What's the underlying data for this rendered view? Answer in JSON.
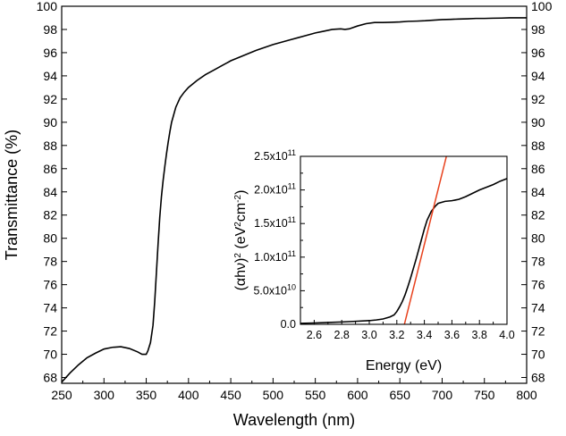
{
  "chart_data": [
    {
      "type": "line",
      "xlabel": "Wavelength (nm)",
      "ylabel": "Transmittance (%)",
      "xlim": [
        250,
        800
      ],
      "ylim": [
        67.5,
        100
      ],
      "x_ticks": [
        "250",
        "300",
        "350",
        "400",
        "450",
        "500",
        "550",
        "600",
        "650",
        "700",
        "750",
        "800"
      ],
      "y_ticks": [
        "68",
        "70",
        "72",
        "74",
        "76",
        "78",
        "80",
        "82",
        "84",
        "86",
        "88",
        "90",
        "92",
        "94",
        "96",
        "98",
        "100"
      ],
      "y_ticks_right": true,
      "grid": false,
      "line_color": "#000000",
      "series": [
        {
          "x": [
            250,
            260,
            270,
            280,
            290,
            300,
            310,
            320,
            330,
            340,
            345,
            350,
            352,
            355,
            358,
            360,
            362,
            364,
            366,
            368,
            370,
            372,
            374,
            376,
            378,
            380,
            385,
            390,
            395,
            400,
            410,
            420,
            430,
            440,
            450,
            460,
            470,
            480,
            490,
            500,
            510,
            520,
            530,
            540,
            550,
            560,
            570,
            580,
            585,
            590,
            600,
            610,
            620,
            630,
            640,
            650,
            660,
            670,
            680,
            690,
            700,
            710,
            720,
            730,
            740,
            750,
            760,
            770,
            780,
            790,
            800
          ],
          "y": [
            67.6,
            68.4,
            69.1,
            69.7,
            70.1,
            70.45,
            70.6,
            70.65,
            70.5,
            70.2,
            70.0,
            70.0,
            70.3,
            71.0,
            72.5,
            74.5,
            77.0,
            79.5,
            81.8,
            83.6,
            85.0,
            86.2,
            87.3,
            88.3,
            89.2,
            90.0,
            91.3,
            92.1,
            92.6,
            93.0,
            93.6,
            94.1,
            94.5,
            94.9,
            95.3,
            95.6,
            95.9,
            96.2,
            96.45,
            96.7,
            96.9,
            97.1,
            97.3,
            97.5,
            97.7,
            97.85,
            98.0,
            98.05,
            98.0,
            98.05,
            98.3,
            98.5,
            98.6,
            98.6,
            98.62,
            98.65,
            98.7,
            98.72,
            98.75,
            98.8,
            98.85,
            98.87,
            98.9,
            98.92,
            98.95,
            98.95,
            98.97,
            98.98,
            99.0,
            99.0,
            99.0
          ]
        }
      ]
    },
    {
      "type": "line",
      "xlabel": "Energy (eV)",
      "ylabel": "(αhν)² (eV²cm⁻²)",
      "ylabel_parts": {
        "base": "(αhν)",
        "sup1": "2",
        "mid": " (eV",
        "sup2": "2",
        "unit": "cm",
        "sup3": "-2",
        "end": ")"
      },
      "xlim": [
        2.5,
        4.0
      ],
      "ylim": [
        0,
        250000000000.0
      ],
      "x_ticks": [
        "2.6",
        "2.8",
        "3.0",
        "3.2",
        "3.4",
        "3.6",
        "3.8",
        "4.0"
      ],
      "y_ticks": [
        {
          "value": 0,
          "base": "0.0",
          "exp": ""
        },
        {
          "value": 50000000000.0,
          "base": "5.0x10",
          "exp": "10"
        },
        {
          "value": 100000000000.0,
          "base": "1.0x10",
          "exp": "11"
        },
        {
          "value": 150000000000.0,
          "base": "1.5x10",
          "exp": "11"
        },
        {
          "value": 200000000000.0,
          "base": "2.0x10",
          "exp": "11"
        },
        {
          "value": 250000000000.0,
          "base": "2.5x10",
          "exp": "11"
        }
      ],
      "grid": false,
      "series": [
        {
          "color": "#000000",
          "x": [
            2.5,
            2.6,
            2.7,
            2.8,
            2.9,
            3.0,
            3.05,
            3.1,
            3.15,
            3.18,
            3.2,
            3.22,
            3.24,
            3.26,
            3.28,
            3.3,
            3.32,
            3.34,
            3.36,
            3.38,
            3.4,
            3.42,
            3.45,
            3.48,
            3.5,
            3.55,
            3.6,
            3.65,
            3.7,
            3.75,
            3.8,
            3.85,
            3.9,
            3.95,
            4.0
          ],
          "y": [
            1500000000.0,
            2000000000.0,
            2800000000.0,
            3500000000.0,
            4500000000.0,
            5500000000.0,
            6500000000.0,
            8000000000.0,
            11000000000.0,
            14000000000.0,
            19000000000.0,
            26000000000.0,
            34000000000.0,
            44000000000.0,
            56000000000.0,
            69000000000.0,
            83000000000.0,
            97000000000.0,
            112000000000.0,
            127000000000.0,
            142000000000.0,
            155000000000.0,
            168000000000.0,
            176000000000.0,
            180000000000.0,
            183000000000.0,
            184000000000.0,
            186000000000.0,
            190000000000.0,
            195000000000.0,
            200000000000.0,
            204000000000.0,
            208000000000.0,
            213000000000.0,
            217000000000.0
          ]
        },
        {
          "color": "#e8401c",
          "x": [
            3.255,
            3.56
          ],
          "y": [
            0,
            250000000000.0
          ]
        }
      ]
    }
  ]
}
